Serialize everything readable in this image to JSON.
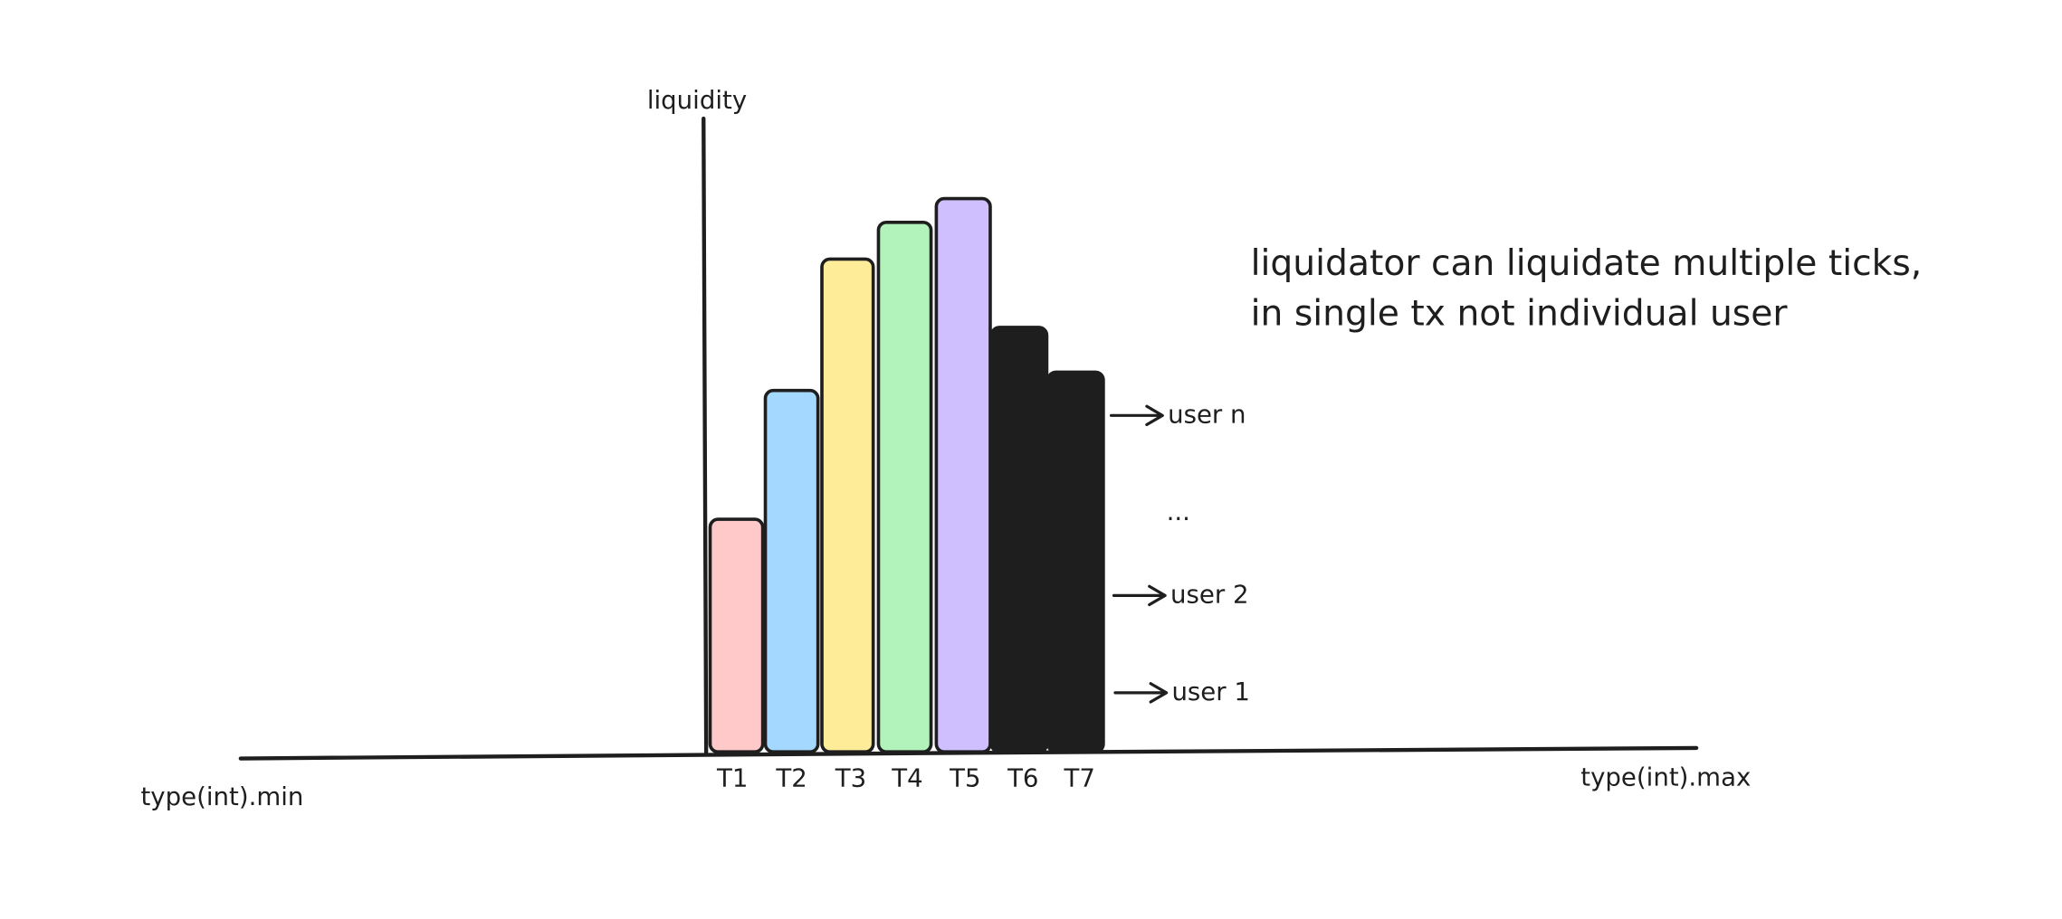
{
  "axes": {
    "y_label": "liquidity",
    "x_min_label": "type(int).min",
    "x_max_label": "type(int).max"
  },
  "bars": [
    {
      "label": "T1"
    },
    {
      "label": "T2"
    },
    {
      "label": "T3"
    },
    {
      "label": "T4"
    },
    {
      "label": "T5"
    },
    {
      "label": "T6"
    },
    {
      "label": "T7"
    }
  ],
  "pointers": [
    {
      "label": "user n"
    },
    {
      "label": "..."
    },
    {
      "label": "user 2"
    },
    {
      "label": "user 1"
    }
  ],
  "note": {
    "lines": [
      "liquidator can liquidate multiple ticks,",
      "in single tx not individual user"
    ]
  }
}
